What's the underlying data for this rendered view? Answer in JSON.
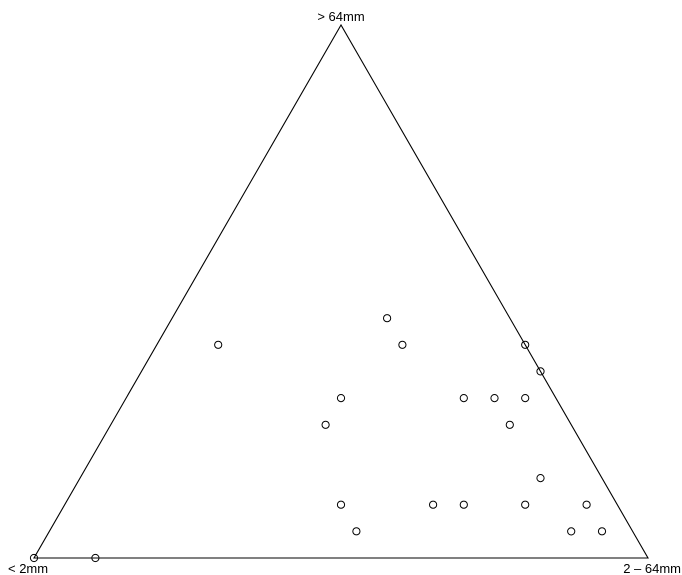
{
  "chart_data": {
    "type": "scatter",
    "subtype": "ternary",
    "vertex_labels": {
      "top": "> 64mm",
      "bottom_left": "< 2mm",
      "bottom_right": "2 – 64mm"
    },
    "marker": "open-circle",
    "marker_color": "#000000",
    "points": [
      {
        "top": 0.0,
        "bottom_right": 0.0
      },
      {
        "top": 0.0,
        "bottom_right": 0.1
      },
      {
        "top": 0.4,
        "bottom_right": 0.1
      },
      {
        "top": 0.45,
        "bottom_right": 0.35
      },
      {
        "top": 0.4,
        "bottom_right": 0.4
      },
      {
        "top": 0.3,
        "bottom_right": 0.35
      },
      {
        "top": 0.25,
        "bottom_right": 0.35
      },
      {
        "top": 0.1,
        "bottom_right": 0.45
      },
      {
        "top": 0.05,
        "bottom_right": 0.5
      },
      {
        "top": 0.4,
        "bottom_right": 0.6
      },
      {
        "top": 0.3,
        "bottom_right": 0.55
      },
      {
        "top": 0.3,
        "bottom_right": 0.65
      },
      {
        "top": 0.35,
        "bottom_right": 0.65
      },
      {
        "top": 0.3,
        "bottom_right": 0.6
      },
      {
        "top": 0.25,
        "bottom_right": 0.65
      },
      {
        "top": 0.1,
        "bottom_right": 0.6
      },
      {
        "top": 0.1,
        "bottom_right": 0.65
      },
      {
        "top": 0.15,
        "bottom_right": 0.75
      },
      {
        "top": 0.1,
        "bottom_right": 0.75
      },
      {
        "top": 0.1,
        "bottom_right": 0.85
      },
      {
        "top": 0.05,
        "bottom_right": 0.85
      },
      {
        "top": 0.05,
        "bottom_right": 0.9
      }
    ]
  }
}
